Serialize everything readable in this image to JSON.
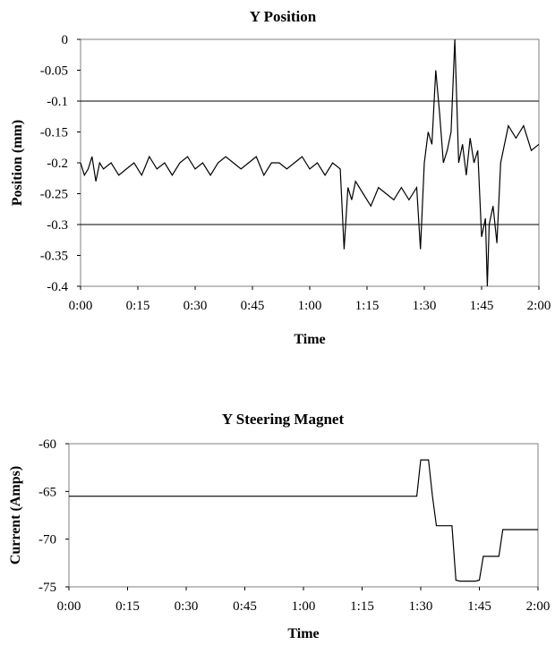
{
  "chart_data": [
    {
      "type": "line",
      "title": "Y Position",
      "xlabel": "Time",
      "ylabel": "Position (mm)",
      "xlim": [
        "0:00",
        "2:00"
      ],
      "ylim": [
        -0.4,
        0
      ],
      "x_ticks": [
        "0:00",
        "0:15",
        "0:30",
        "0:45",
        "1:00",
        "1:15",
        "1:30",
        "1:45",
        "2:00"
      ],
      "y_ticks": [
        "0",
        "-0.05",
        "-0.1",
        "-0.15",
        "-0.2",
        "-0.25",
        "-0.3",
        "-0.35",
        "-0.4"
      ],
      "reference_lines": [
        -0.1,
        -0.3
      ],
      "grid": false,
      "series": [
        {
          "values_minutes": [
            0,
            1,
            2,
            3,
            4,
            5,
            6,
            8,
            10,
            12,
            14,
            16,
            18,
            20,
            22,
            24,
            26,
            28,
            30,
            32,
            34,
            36,
            38,
            40,
            42,
            44,
            46,
            48,
            50,
            52,
            54,
            56,
            58,
            60,
            62,
            64,
            66,
            68,
            69,
            70,
            71,
            72,
            74,
            76,
            78,
            80,
            82,
            84,
            86,
            88,
            89,
            90,
            91,
            92,
            93,
            94,
            95,
            96,
            97,
            98,
            99,
            100,
            101,
            102,
            103,
            104,
            105,
            106,
            106.5,
            107,
            108,
            109,
            110,
            112,
            114,
            116,
            118,
            120
          ],
          "values": [
            -0.2,
            -0.22,
            -0.21,
            -0.19,
            -0.23,
            -0.2,
            -0.21,
            -0.2,
            -0.22,
            -0.21,
            -0.2,
            -0.22,
            -0.19,
            -0.21,
            -0.2,
            -0.22,
            -0.2,
            -0.19,
            -0.21,
            -0.2,
            -0.22,
            -0.2,
            -0.19,
            -0.2,
            -0.21,
            -0.2,
            -0.19,
            -0.22,
            -0.2,
            -0.2,
            -0.21,
            -0.2,
            -0.19,
            -0.21,
            -0.2,
            -0.22,
            -0.2,
            -0.21,
            -0.34,
            -0.24,
            -0.26,
            -0.23,
            -0.25,
            -0.27,
            -0.24,
            -0.25,
            -0.26,
            -0.24,
            -0.26,
            -0.24,
            -0.34,
            -0.2,
            -0.15,
            -0.17,
            -0.05,
            -0.12,
            -0.2,
            -0.18,
            -0.15,
            0,
            -0.2,
            -0.17,
            -0.22,
            -0.16,
            -0.2,
            -0.18,
            -0.32,
            -0.29,
            -0.4,
            -0.3,
            -0.27,
            -0.33,
            -0.2,
            -0.14,
            -0.16,
            -0.14,
            -0.18,
            -0.17
          ]
        }
      ]
    },
    {
      "type": "line",
      "title": "Y Steering Magnet",
      "xlabel": "Time",
      "ylabel": "Current (Amps)",
      "xlim": [
        "0:00",
        "2:00"
      ],
      "ylim": [
        -75,
        -60
      ],
      "x_ticks": [
        "0:00",
        "0:15",
        "0:30",
        "0:45",
        "1:00",
        "1:15",
        "1:30",
        "1:45",
        "2:00"
      ],
      "y_ticks": [
        "-60",
        "-65",
        "-70",
        "-75"
      ],
      "grid": false,
      "series": [
        {
          "values_minutes": [
            0,
            89,
            90,
            92,
            93,
            94,
            96,
            98,
            99,
            100,
            104,
            105,
            106,
            107,
            109,
            110,
            111,
            112,
            114,
            116,
            118,
            120
          ],
          "values": [
            -65.5,
            -65.5,
            -61.7,
            -61.7,
            -65.5,
            -68.6,
            -68.6,
            -68.6,
            -74.3,
            -74.4,
            -74.4,
            -74.3,
            -71.8,
            -71.8,
            -71.8,
            -71.8,
            -69.0,
            -69.0,
            -69.0,
            -69.0,
            -69.0,
            -69.0
          ]
        }
      ]
    }
  ]
}
